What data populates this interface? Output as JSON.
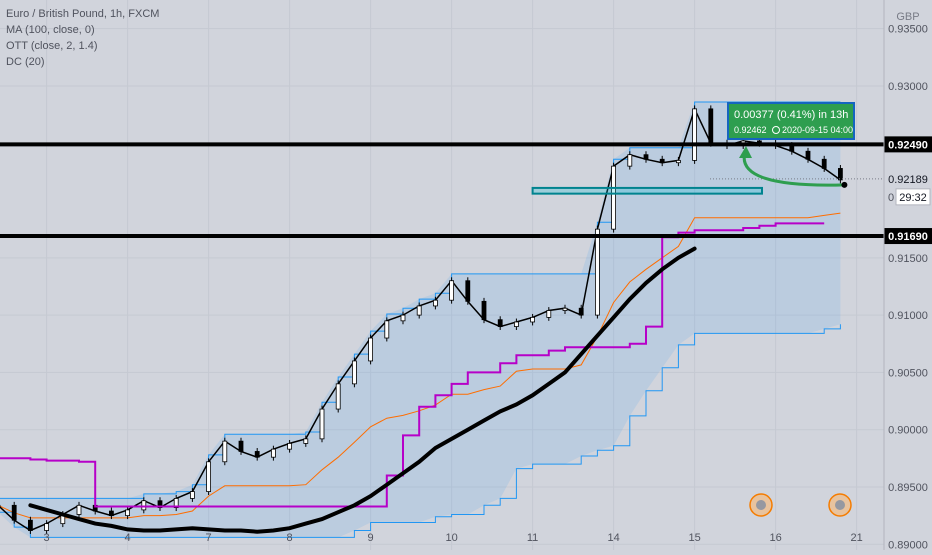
{
  "legend": {
    "title": "Euro / British Pound, 1h, FXCM",
    "indicators": [
      "MA (100, close, 0)",
      "OTT (close, 2, 1.4)",
      "DC (20)"
    ]
  },
  "chart_data": {
    "type": "line",
    "currency": "GBP",
    "x_ticks": [
      "3",
      "4",
      "7",
      "8",
      "9",
      "10",
      "11",
      "14",
      "15",
      "16",
      "21"
    ],
    "x_ticks_at_series_index": [
      3,
      8,
      13,
      18,
      23,
      28,
      33,
      38,
      43,
      48,
      53
    ],
    "y_ticks": [
      "0.93500",
      "0.93000",
      "0.91500",
      "0.91000",
      "0.90500",
      "0.90000",
      "0.89500",
      "0.89000"
    ],
    "ylim": [
      0.8895,
      0.9375
    ],
    "levels": [
      {
        "name": "resistance",
        "label": "0.92490",
        "value": 0.9249
      },
      {
        "name": "support",
        "label": "0.91690",
        "value": 0.9169
      }
    ],
    "current_price": {
      "label": "0.92189",
      "value": 0.92189,
      "countdown": "29:32"
    },
    "partial_label": "0",
    "projection": {
      "line1": "0.00377 (0.41%) in 13h",
      "line2": "0.92462",
      "line3": "2020-09-15  04:00"
    },
    "zone": {
      "low": 0.9206,
      "high": 0.9211
    },
    "close": [
      0.8934,
      0.8921,
      0.8912,
      0.8918,
      0.8926,
      0.8934,
      0.8929,
      0.8925,
      0.893,
      0.8938,
      0.8932,
      0.894,
      0.8946,
      0.8972,
      0.899,
      0.8981,
      0.8976,
      0.8983,
      0.8988,
      0.8992,
      0.9018,
      0.904,
      0.906,
      0.908,
      0.9095,
      0.91,
      0.9108,
      0.9113,
      0.913,
      0.9112,
      0.9096,
      0.909,
      0.9094,
      0.9098,
      0.9104,
      0.9106,
      0.91,
      0.9175,
      0.923,
      0.924,
      0.9236,
      0.9233,
      0.9235,
      0.928,
      0.925,
      0.9248,
      0.9252,
      0.925,
      0.9248,
      0.9243,
      0.9236,
      0.9228,
      0.9218
    ],
    "ma100": [
      0.8934,
      0.893,
      0.8926,
      0.8922,
      0.8918,
      0.8916,
      0.8913,
      0.8912,
      0.8912,
      0.8913,
      0.8914,
      0.8913,
      0.8912,
      0.8912,
      0.8911,
      0.8912,
      0.8914,
      0.8918,
      0.8922,
      0.8928,
      0.8934,
      0.8942,
      0.8952,
      0.8962,
      0.8972,
      0.8984,
      0.8992,
      0.9,
      0.9008,
      0.9016,
      0.9022,
      0.903,
      0.904,
      0.905,
      0.9066,
      0.9082,
      0.9098,
      0.9114,
      0.9128,
      0.914,
      0.915,
      0.9158
    ],
    "ott": [
      0.8975,
      0.8975,
      0.8974,
      0.8973,
      0.8973,
      0.8972,
      0.8933,
      0.8933,
      0.8933,
      0.8933,
      0.8933,
      0.8933,
      0.8933,
      0.8933,
      0.8933,
      0.8933,
      0.8933,
      0.8933,
      0.8933,
      0.8933,
      0.8933,
      0.8933,
      0.8933,
      0.8933,
      0.896,
      0.8995,
      0.902,
      0.903,
      0.904,
      0.905,
      0.905,
      0.9058,
      0.9065,
      0.9065,
      0.9069,
      0.9072,
      0.9072,
      0.9072,
      0.9072,
      0.9075,
      0.909,
      0.9168,
      0.9172,
      0.9174,
      0.9174,
      0.9174,
      0.9176,
      0.9178,
      0.918,
      0.918,
      0.918,
      0.918
    ]
  }
}
